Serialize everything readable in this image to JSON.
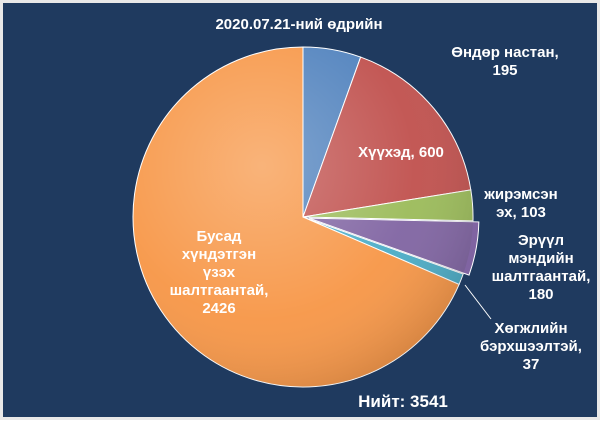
{
  "chart_data": {
    "type": "pie",
    "title": "2020.07.21-ний өдрийн",
    "total_label": "Нийт: 3541",
    "slices": [
      {
        "label_lines": [
          "Өндөр настан,",
          "195"
        ],
        "value": 195,
        "color": "#4f81bd"
      },
      {
        "label_lines": [
          "Хүүхэд, 600"
        ],
        "value": 600,
        "color": "#c0504d"
      },
      {
        "label_lines": [
          "жирэмсэн",
          "эх, 103"
        ],
        "value": 103,
        "color": "#9bbb59"
      },
      {
        "label_lines": [
          "Эрүүл",
          "мэндийн",
          "шалтгаантай,",
          "180"
        ],
        "value": 180,
        "color": "#8064a2"
      },
      {
        "label_lines": [
          "Хөгжлийн",
          "бэрхшээлтэй,",
          "37"
        ],
        "value": 37,
        "color": "#4bacc6"
      },
      {
        "label_lines": [
          "Бусад",
          "хүндэтгэн",
          "үзэх",
          "шалтгаантай,",
          "2426"
        ],
        "value": 2426,
        "color": "#f79646"
      }
    ]
  }
}
